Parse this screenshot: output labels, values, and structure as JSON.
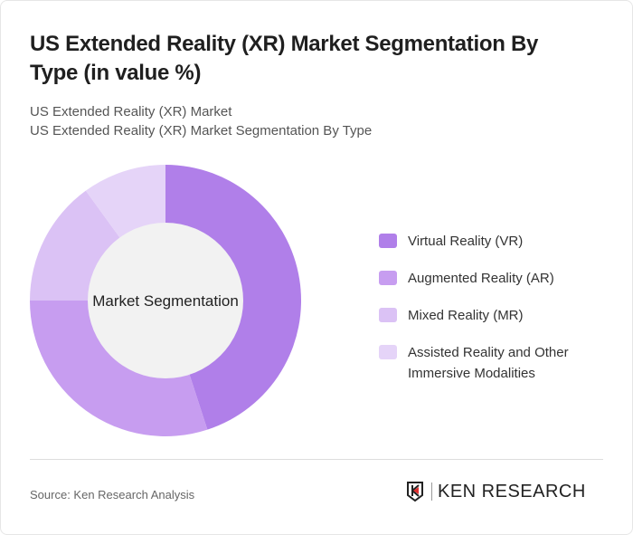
{
  "title": "US Extended Reality (XR) Market Segmentation By Type (in value %)",
  "subtitle1": "US Extended Reality (XR) Market",
  "subtitle2": "US Extended Reality (XR) Market Segmentation By Type",
  "source": "Source: Ken Research Analysis",
  "logo_text": "KEN RESEARCH",
  "chart_data": {
    "type": "pie",
    "donut": true,
    "center_label": "Market Segmentation",
    "categories": [
      "Virtual Reality (VR)",
      "Augmented Reality (AR)",
      "Mixed Reality (MR)",
      "Assisted Reality and Other Immersive Modalities"
    ],
    "values": [
      45,
      30,
      15,
      10
    ],
    "colors": [
      "#b07fe9",
      "#c79df0",
      "#dbc2f5",
      "#e5d4f8"
    ],
    "legend": "right"
  }
}
